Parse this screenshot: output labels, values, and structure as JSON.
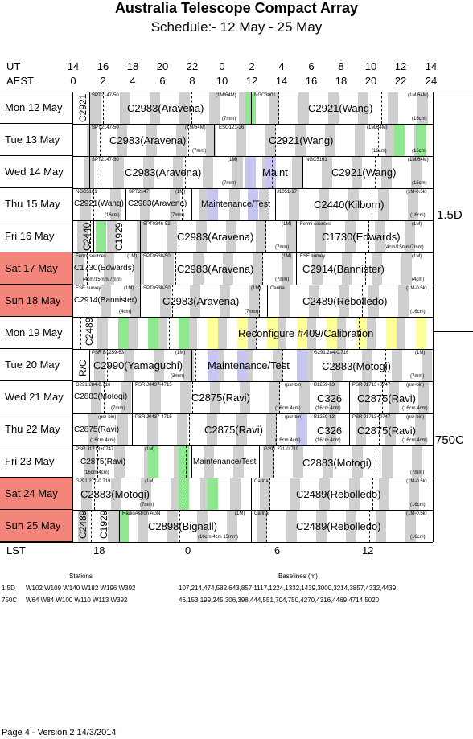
{
  "title": "Australia Telescope Compact Array",
  "subtitle": "Schedule:- 12 May - 25 May",
  "ut_label": "UT",
  "aest_label": "AEST",
  "lst_label": "LST",
  "ut_times": [
    "14",
    "16",
    "18",
    "20",
    "22",
    "0",
    "2",
    "4",
    "6",
    "8",
    "10",
    "12",
    "14"
  ],
  "aest_times": [
    "0",
    "2",
    "4",
    "6",
    "8",
    "10",
    "12",
    "14",
    "16",
    "18",
    "20",
    "22",
    "24"
  ],
  "lst_ticks": [
    "18",
    "0",
    "6",
    "12"
  ],
  "configs": [
    "1.5D",
    "750C"
  ],
  "rows": [
    {
      "label": "Mon  12 May",
      "weekend": false
    },
    {
      "label": "Tue  13 May",
      "weekend": false
    },
    {
      "label": "Wed 14 May",
      "weekend": false
    },
    {
      "label": "Thu  15 May",
      "weekend": false
    },
    {
      "label": "Fri    16 May",
      "weekend": false
    },
    {
      "label": "Sat   17 May",
      "weekend": true
    },
    {
      "label": "Sun  18 May",
      "weekend": true
    },
    {
      "label": "Mon 19 May",
      "weekend": false
    },
    {
      "label": "Tue  20 May",
      "weekend": false
    },
    {
      "label": "Wed 21 May",
      "weekend": false
    },
    {
      "label": "Thu  22 May",
      "weekend": false
    },
    {
      "label": "Fri    23 May",
      "weekend": false
    },
    {
      "label": "Sat   24 May",
      "weekend": true
    },
    {
      "label": "Sun  25 May",
      "weekend": true
    }
  ],
  "projects": {
    "r0": {
      "a": "C2983(Aravena)",
      "b": "C2921(Wang)",
      "v": "C2921",
      "s1": "SPT2147-50",
      "s2": "(1M/64M)",
      "s3": "NGC3001",
      "s4": "(1M/64M)",
      "s5": "(7mm)",
      "s6": "(16cm)"
    },
    "r1": {
      "a": "C2983(Aravena)",
      "b": "C2921(Wang)",
      "s1": "SPT2147-50",
      "s2": "(1M/64M)",
      "s3": "ESO121-26",
      "s4": "(1M/64M)",
      "s5": "(7mm)",
      "s6": "(16cm)",
      "s7": "(16cm)"
    },
    "r2": {
      "a": "C2983(Aravena)",
      "m": "Maint",
      "b": "C2921(Wang)",
      "s1": "SPT2147-50",
      "s2": "(1M)",
      "s3": "NGC5161",
      "s4": "(1M/64M)",
      "s5": "(7mm)",
      "s6": "(16cm)"
    },
    "r3": {
      "a": "C2921(Wang)",
      "b": "C2983(Aravena)",
      "m": "Maintenance/Test",
      "c": "C2440(Kilborn)",
      "s1": "NGC5161",
      "s2": "SPT2147",
      "s3": "(1M)",
      "s4": "J1051-17",
      "s5": "(1M-0.5k)",
      "s6": "(16cm)",
      "s7": "(7mm)",
      "s8": "(16cm)"
    },
    "r4": {
      "v1": "C2440",
      "v2": "C1929",
      "a": "C2983(Aravena)",
      "b": "C1730(Edwards)",
      "s1": "SPT0346-52",
      "s2": "(1M)",
      "s3": "Fermi sources",
      "s4": "(1M)",
      "s5": "(7mm)",
      "s6": "(4cm/15mm/7mm)"
    },
    "r5": {
      "a": "C1730(Edwards)",
      "b": "C2983(Aravena)",
      "c": "C2914(Bannister)",
      "s1": "Fermi sources",
      "s2": "(1M)",
      "s3": "SPT0538-50",
      "s4": "(1M)",
      "s5": "ESE survey",
      "s6": "(1M)",
      "s7": "(4cm/15mm/7mm)",
      "s8": "(7mm)",
      "s9": "(4cm)"
    },
    "r6": {
      "a": "C2914(Bannister)",
      "b": "C2983(Aravena)",
      "c": "C2489(Rebolledo)",
      "s1": "ESE survey",
      "s2": "(1M)",
      "s3": "SPT0538-50",
      "s4": "(1M)",
      "s5": "Carina",
      "s6": "(1M-0.5k)",
      "s7": "(4cm)",
      "s8": "(7mm)",
      "s9": "(16cm)"
    },
    "r7": {
      "v": "C2489",
      "a": "Reconfigure #409/Calibration"
    },
    "r8": {
      "v": "R/C",
      "a": "C2990(Yamaguchi)",
      "m": "Maintenance/Test",
      "b": "C2883(Motogi)",
      "s1": "PSR B1259-63",
      "s2": "(1M)",
      "s3": "G291.284-0.716",
      "s4": "(1M)",
      "s5": "(3mm)",
      "s6": "(7mm)"
    },
    "r9": {
      "a": "C2883(Motogi)",
      "b": "C2875(Ravi)",
      "c": "C326",
      "d": "C2875(Ravi)",
      "s1": "G291.284-0.716",
      "s2": "PSR J0437-4715",
      "s3": "(psr-bin)",
      "s4": "B1259-63",
      "s5": "PSR J1713+0747",
      "s6": "(psr-bin)",
      "s7": "(7mm)",
      "s8": "(16cm 4cm)",
      "s9": "(16cm 4cm)",
      "s10": "(16cm 4cm)"
    },
    "r10": {
      "a": "C2875(Ravi)",
      "b": "C2875(Ravi)",
      "c": "C326",
      "d": "C2875(Ravi)",
      "s1": "(psr-bin)",
      "s2": "PSR J0437-4715",
      "s3": "(psr-bin)",
      "s4": "B1259-63",
      "s5": "PSR J1713+0747",
      "s6": "(psr-bin)",
      "s7": "(16cm 4cm)",
      "s8": "(16cm 4cm)",
      "s9": "(16cm 4cm)",
      "s10": "(16cm 4cm)"
    },
    "r11": {
      "a": "C2875(Ravi)",
      "m": "Maintenance/Test",
      "b": "C2883(Motogi)",
      "s1": "PSR J1713+0747",
      "s2": "(1M)",
      "s3": "G291.271-0.719",
      "s4": "(16cm 4cm)",
      "s5": "(7mm)"
    },
    "r12": {
      "a": "C2883(Motogi)",
      "b": "C2489(Rebolledo)",
      "s1": "G291.271-0.719",
      "s2": "(1M)",
      "s3": "Carina",
      "s4": "(1M-0.5k)",
      "s5": "(7mm)",
      "s6": "(16cm)"
    },
    "r13": {
      "v1": "C2489",
      "v2": "C1929",
      "a": "C2898(Bignall)",
      "b": "C2489(Rebolledo)",
      "s1": "RadioAstron AGN",
      "s2": "(1M)",
      "s3": "Carina",
      "s4": "(1M-0.5k)",
      "s5": "(16cm 4cm 15mm)",
      "s6": "(16cm)"
    }
  },
  "footer": {
    "stations_label": "Stations",
    "baselines_label": "Baselines (m)",
    "c1_name": "1.5D",
    "c1_stations": "W102  W109  W140  W182  W196  W392",
    "c1_baselines": "107,214,474,582,643,857,1117,1224,1332,1439,3000,3214,3857,4332,4439",
    "c2_name": "750C",
    "c2_stations": "W64  W84  W100  W110  W113  W392",
    "c2_baselines": "46,153,199,245,306,398,444,551,704,750,4270,4316,4469,4714,5020",
    "page_info": "Page 4 - Version 2  14/3/2014"
  }
}
